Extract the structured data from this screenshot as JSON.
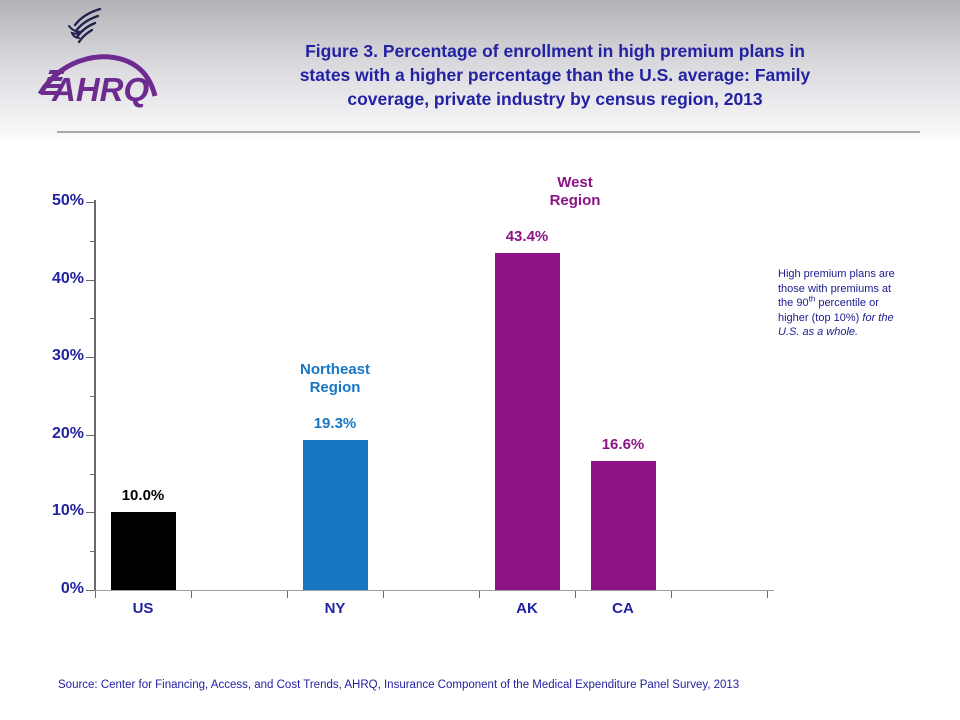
{
  "header": {
    "title_lines": [
      "Figure 3. Percentage of enrollment in high premium plans in",
      "states with a higher percentage than the U.S. average: Family",
      "coverage, private industry by census region, 2013"
    ],
    "logo_text": "AHRQ"
  },
  "chart_data": {
    "type": "bar",
    "title": "Figure 3. Percentage of enrollment in high premium plans in states with a higher percentage than the U.S. average: Family coverage, private industry by census region, 2013",
    "categories": [
      "US",
      "NY",
      "AK",
      "CA"
    ],
    "values": [
      10.0,
      19.3,
      43.4,
      16.6
    ],
    "value_labels": [
      "10.0%",
      "19.3%",
      "43.4%",
      "16.6%"
    ],
    "bar_colors": [
      "#000000",
      "#1777C4",
      "#8B1385",
      "#8B1385"
    ],
    "value_label_colors": [
      "#000000",
      "#1777C4",
      "#8B1385",
      "#8B1385"
    ],
    "slots": [
      0,
      2,
      4,
      5
    ],
    "n_slots": 7,
    "xlabel": "",
    "ylabel": "",
    "ylim": [
      0,
      50
    ],
    "y_tick_labels": [
      "0%",
      "10%",
      "20%",
      "30%",
      "40%",
      "50%"
    ],
    "y_tick_step": 10,
    "y_minor_tick_step": 5,
    "grid": false,
    "legend": false,
    "region_labels": [
      {
        "line1": "Northeast",
        "line2": "Region",
        "color": "#1777C4",
        "anchor_bars": [
          1
        ]
      },
      {
        "line1": "West",
        "line2": "Region",
        "color": "#8B1385",
        "anchor_bars": [
          2,
          3
        ]
      }
    ]
  },
  "annotation": {
    "part1": "High premium plans are those with premiums at the 90",
    "superscript": "th",
    "part2": " percentile or higher (top 10%) ",
    "italic_part": "for the U.S. as a whole."
  },
  "source_line": "Source: Center for Financing, Access, and Cost Trends, AHRQ, Insurance Component of the Medical Expenditure Panel Survey, 2013",
  "colors": {
    "title_text": "#2222A2",
    "axis_text": "#2222A2",
    "annotation_text": "#1B1B8F",
    "source_text": "#2222A2",
    "logo_purple": "#6D2A8F",
    "eagle_navy": "#23234E",
    "header_gradient_top": "#B3B3B7",
    "divider_gray": "#A8A8A8"
  }
}
